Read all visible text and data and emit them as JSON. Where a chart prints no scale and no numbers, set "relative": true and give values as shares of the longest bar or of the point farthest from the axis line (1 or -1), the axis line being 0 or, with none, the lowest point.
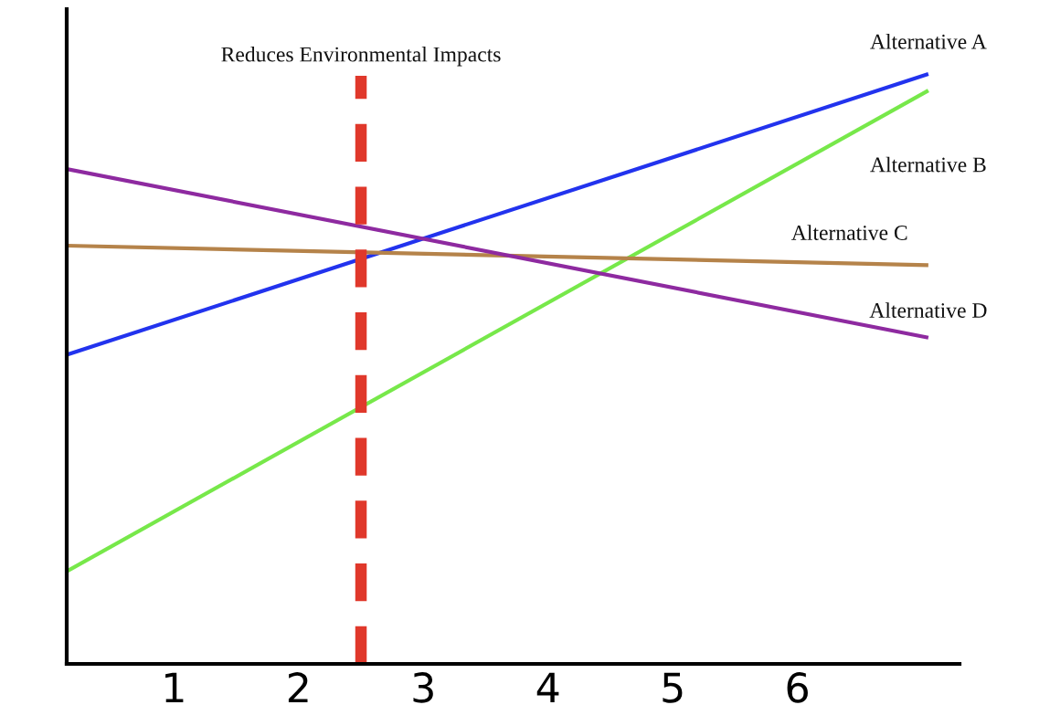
{
  "chart_data": {
    "type": "line",
    "relative": true,
    "x": [
      0.14,
      7.05
    ],
    "xlim": [
      0.14,
      7.3
    ],
    "xticks": [
      1,
      2,
      3,
      4,
      5,
      6
    ],
    "grid": false,
    "legend": false,
    "marker": "none",
    "line_style": "solid",
    "series": [
      {
        "name": "Alternative A",
        "color": "#2233ee",
        "values": [
          0.524,
          1
        ]
      },
      {
        "name": "Alternative B",
        "color": "#77e84a",
        "values": [
          0.157,
          0.972
        ]
      },
      {
        "name": "Alternative C",
        "color": "#b5834a",
        "values": [
          0.709,
          0.676
        ]
      },
      {
        "name": "Alternative D",
        "color": "#8e2aa0",
        "values": [
          0.839,
          0.553
        ]
      }
    ],
    "ref_lines": [
      {
        "axis": "x",
        "value": 2.5,
        "label": "Reduces Environmental Impacts",
        "color": "#e0382b",
        "line_style": "dashed"
      }
    ]
  }
}
